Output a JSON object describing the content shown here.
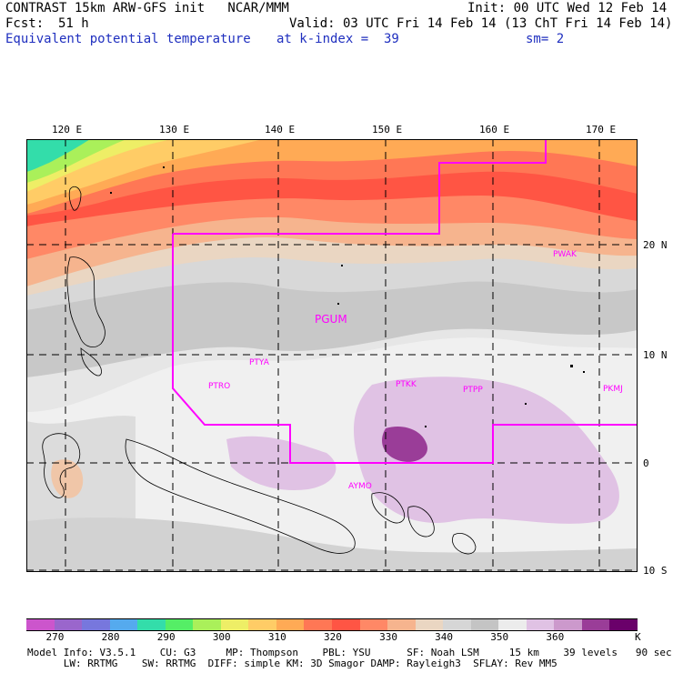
{
  "header": {
    "title": "CONTRAST 15km ARW-GFS init   NCAR/MMM",
    "init": "Init: 00 UTC Wed 12 Feb 14",
    "fcst_label": "Fcst:",
    "fcst_value": "51 h",
    "valid": "Valid: 03 UTC Fri 14 Feb 14 (13 ChT Fri 14 Feb 14)",
    "field": "Equivalent potential temperature",
    "level": "at k-index =  39",
    "smooth": "sm= 2"
  },
  "axes": {
    "lon_labels": [
      "120 E",
      "130 E",
      "140 E",
      "150 E",
      "160 E",
      "170 E"
    ],
    "lat_labels": [
      "20 N",
      "10 N",
      "0",
      "10 S"
    ]
  },
  "stations": [
    "PWAK",
    "PGUM",
    "PTYA",
    "PTRO",
    "PTKK",
    "PTPP",
    "PKMJ",
    "AYMO"
  ],
  "colorbar": {
    "colors": [
      "#cc55cc",
      "#9a66cc",
      "#7777dd",
      "#55aaee",
      "#33ddaa",
      "#55ee66",
      "#aaf05a",
      "#eeee66",
      "#ffcc66",
      "#ffaa55",
      "#ff7755",
      "#ff5544",
      "#ff8866",
      "#f6b48e",
      "#ead6c2",
      "#d6d6d6",
      "#c4c4c4",
      "#ececec",
      "#e0c2e4",
      "#cc99cc",
      "#9a3d98",
      "#6a006a"
    ],
    "tick_labels": [
      "270",
      "280",
      "290",
      "300",
      "310",
      "320",
      "330",
      "340",
      "350",
      "360"
    ],
    "unit": "K"
  },
  "footer": {
    "line1": "Model Info: V3.5.1    CU: G3     MP: Thompson    PBL: YSU      SF: Noah LSM     15 km    39 levels   90 sec",
    "line2": "      LW: RRTMG    SW: RRTMG  DIFF: simple KM: 3D Smagor DAMP: Rayleigh3  SFLAY: Rev MM5"
  }
}
